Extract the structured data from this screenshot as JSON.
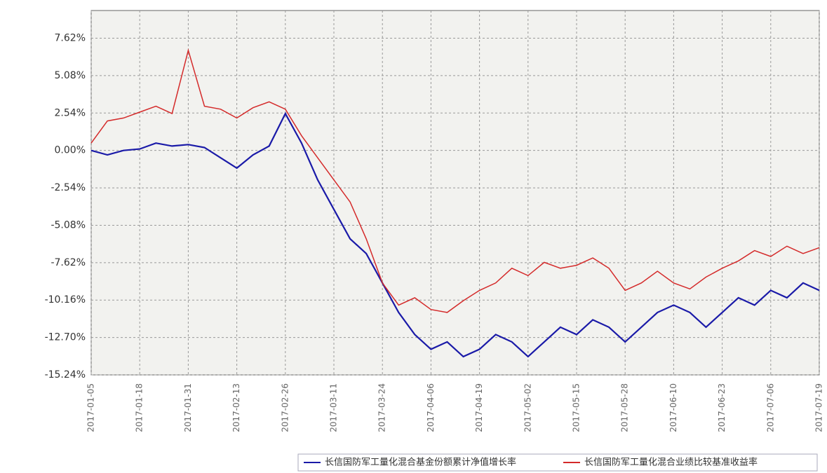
{
  "chart_data": {
    "type": "line",
    "x": [
      "2017-01-05",
      null,
      null,
      "2017-01-18",
      null,
      null,
      "2017-01-31",
      null,
      null,
      "2017-02-13",
      null,
      null,
      "2017-02-26",
      null,
      null,
      "2017-03-11",
      null,
      null,
      "2017-03-24",
      null,
      null,
      "2017-04-06",
      null,
      null,
      "2017-04-19",
      null,
      null,
      "2017-05-02",
      null,
      null,
      "2017-05-15",
      null,
      null,
      "2017-05-28",
      null,
      null,
      "2017-06-10",
      null,
      null,
      "2017-06-23",
      null,
      null,
      "2017-07-06",
      null,
      null,
      "2017-07-19"
    ],
    "series": [
      {
        "name": "长信国防军工量化混合基金份额累计净值增长率",
        "color": "#1a1aa8",
        "values": [
          0,
          -0.3,
          0,
          0.1,
          0.5,
          0.3,
          0.4,
          0.2,
          -0.5,
          -1.2,
          -0.3,
          0.3,
          2.5,
          0.5,
          -2,
          -4,
          -6,
          -7,
          -9,
          -11,
          -12.5,
          -13.5,
          -13,
          -14,
          -13.5,
          -12.5,
          -13,
          -14,
          -13,
          -12,
          -12.5,
          -11.5,
          -12,
          -13,
          -12,
          -11,
          -10.5,
          -11,
          -12,
          -11,
          -10,
          -10.5,
          -9.5,
          -10,
          -9,
          -9.5
        ]
      },
      {
        "name": "长信国防军工量化混合业绩比较基准收益率",
        "color": "#d42a2a",
        "values": [
          0.5,
          2,
          2.2,
          2.6,
          3,
          2.5,
          6.8,
          3,
          2.8,
          2.2,
          2.9,
          3.3,
          2.8,
          1,
          -0.5,
          -2,
          -3.5,
          -6,
          -9,
          -10.5,
          -10,
          -10.8,
          -11,
          -10.2,
          -9.5,
          -9,
          -8,
          -8.5,
          -7.6,
          -8,
          -7.8,
          -7.3,
          -8,
          -9.5,
          -9,
          -8.2,
          -9,
          -9.4,
          -8.6,
          -8,
          -7.5,
          -6.8,
          -7.2,
          -6.5,
          -7,
          -6.6
        ]
      }
    ],
    "ylim": [
      -15.24,
      9.5
    ],
    "yticks": [
      {
        "value": 7.62,
        "label": "7.62%"
      },
      {
        "value": 5.08,
        "label": "5.08%"
      },
      {
        "value": 2.54,
        "label": "2.54%"
      },
      {
        "value": 0,
        "label": "0.00%"
      },
      {
        "value": -2.54,
        "label": "-2.54%"
      },
      {
        "value": -5.08,
        "label": "-5.08%"
      },
      {
        "value": -7.62,
        "label": "-7.62%"
      },
      {
        "value": -10.16,
        "label": "-10.16%"
      },
      {
        "value": -12.7,
        "label": "-12.70%"
      },
      {
        "value": -15.24,
        "label": "-15.24%"
      }
    ],
    "grid": true
  }
}
